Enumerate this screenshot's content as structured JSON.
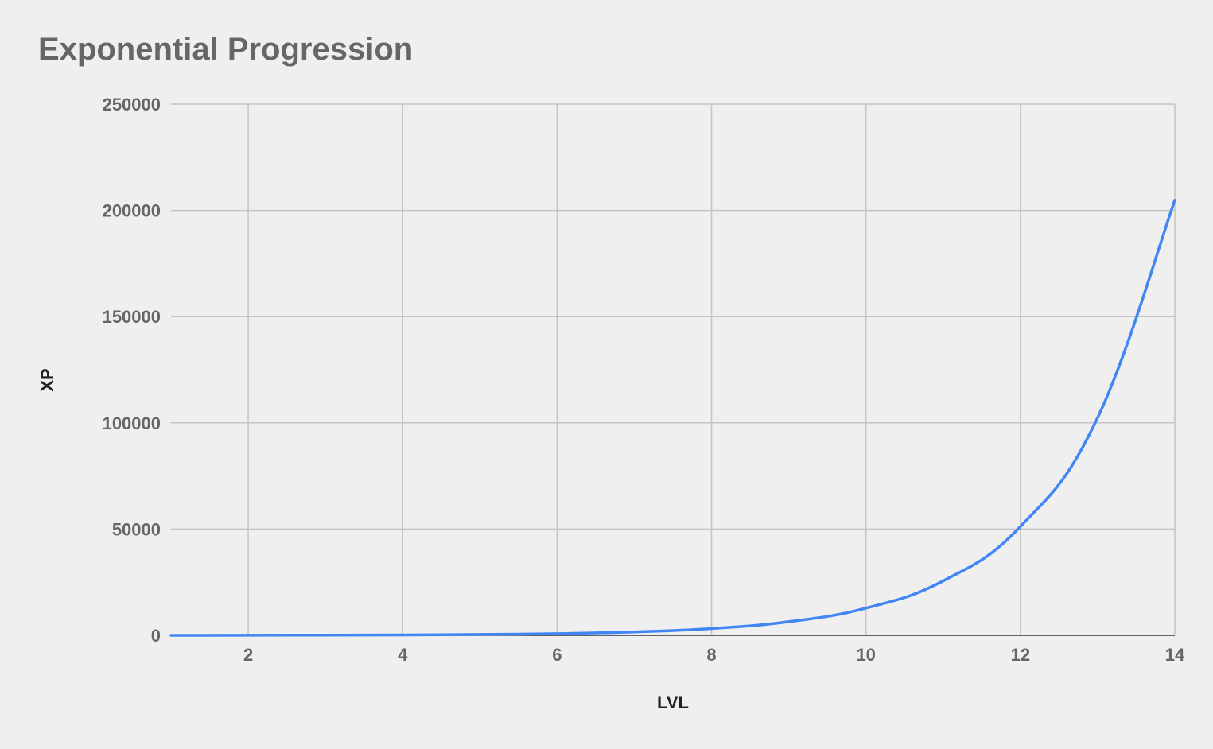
{
  "title": "Exponential Progression",
  "chart_data": {
    "type": "line",
    "title": "Exponential Progression",
    "xlabel": "LVL",
    "ylabel": "XP",
    "xlim": [
      1,
      14
    ],
    "ylim": [
      0,
      250000
    ],
    "x_ticks": [
      2,
      4,
      6,
      8,
      10,
      12,
      14
    ],
    "y_ticks": [
      0,
      50000,
      100000,
      150000,
      200000,
      250000
    ],
    "grid": true,
    "legend": "none",
    "series": [
      {
        "color": "#4285f4",
        "x": [
          1,
          2,
          3,
          4,
          5,
          6,
          7,
          8,
          9,
          10,
          11,
          12,
          13,
          14
        ],
        "values": [
          0,
          50,
          100,
          200,
          400,
          800,
          1600,
          3200,
          6400,
          12800,
          25600,
          51200,
          102400,
          204800
        ]
      }
    ]
  }
}
